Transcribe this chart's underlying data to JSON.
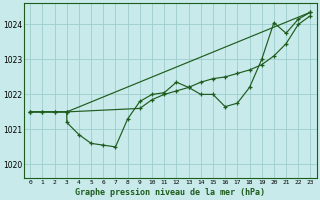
{
  "background_color": "#c8eaea",
  "grid_color": "#9ecece",
  "line_color": "#1e5c1e",
  "title": "Graphe pression niveau de la mer (hPa)",
  "xlim": [
    -0.5,
    23.5
  ],
  "ylim": [
    1019.6,
    1024.6
  ],
  "yticks": [
    1020,
    1021,
    1022,
    1023,
    1024
  ],
  "xticks": [
    0,
    1,
    2,
    3,
    4,
    5,
    6,
    7,
    8,
    9,
    10,
    11,
    12,
    13,
    14,
    15,
    16,
    17,
    18,
    19,
    20,
    21,
    22,
    23
  ],
  "xtick_labels": [
    "0",
    "1",
    "2",
    "3",
    "4",
    "5",
    "6",
    "7",
    "8",
    "9",
    "10",
    "11",
    "12",
    "13",
    "14",
    "15",
    "16",
    "17",
    "18",
    "19",
    "20",
    "21",
    "22",
    "23"
  ],
  "line1_x": [
    0,
    1,
    2,
    3,
    3,
    4,
    5,
    6,
    7,
    8,
    9,
    10,
    11,
    12,
    13,
    14,
    15,
    16,
    17,
    18,
    19,
    20,
    21,
    22,
    23
  ],
  "line1_y": [
    1021.5,
    1021.5,
    1021.5,
    1021.5,
    1021.2,
    1020.85,
    1020.6,
    1020.55,
    1020.5,
    1021.3,
    1021.8,
    1022.0,
    1022.05,
    1022.35,
    1022.2,
    1022.0,
    1022.0,
    1021.65,
    1021.75,
    1022.2,
    1023.0,
    1024.05,
    1023.75,
    1024.15,
    1024.35
  ],
  "line2_x": [
    0,
    1,
    2,
    3,
    9,
    10,
    11,
    12,
    13,
    14,
    15,
    16,
    17,
    18,
    19,
    20,
    21,
    22,
    23
  ],
  "line2_y": [
    1021.5,
    1021.5,
    1021.5,
    1021.5,
    1021.6,
    1021.85,
    1022.0,
    1022.1,
    1022.2,
    1022.35,
    1022.45,
    1022.5,
    1022.6,
    1022.7,
    1022.85,
    1023.1,
    1023.45,
    1024.0,
    1024.25
  ],
  "line3_x": [
    0,
    3,
    23
  ],
  "line3_y": [
    1021.5,
    1021.5,
    1024.35
  ]
}
